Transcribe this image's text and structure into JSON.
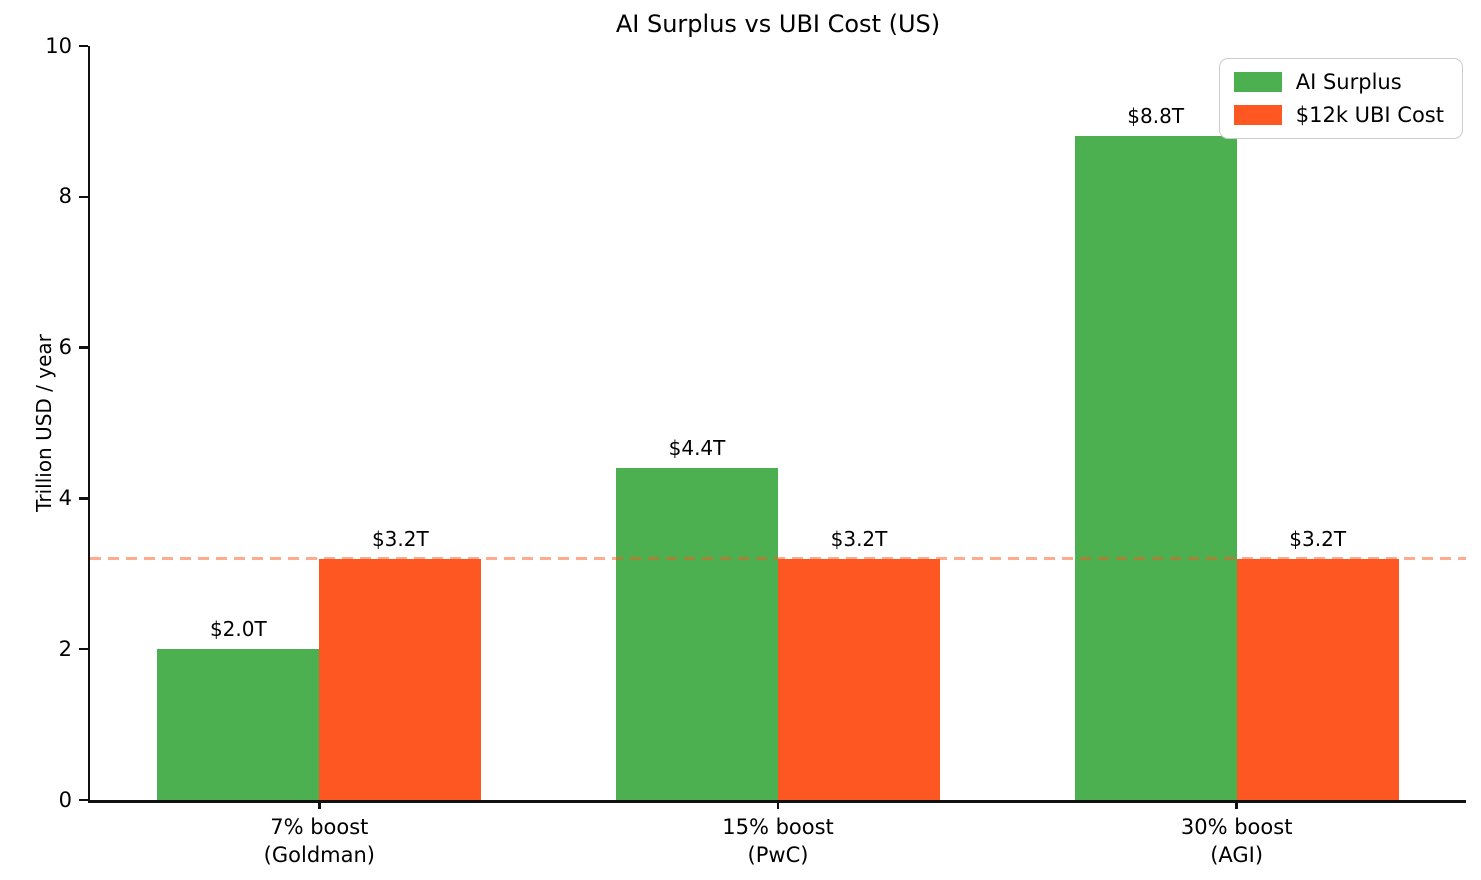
{
  "chart_data": {
    "type": "bar",
    "title": "AI Surplus vs UBI Cost (US)",
    "ylabel": "Trillion USD / year",
    "xlabel": "",
    "ylim": [
      0,
      10
    ],
    "yticks": [
      0,
      2,
      4,
      6,
      8,
      10
    ],
    "grid": false,
    "background": "#ffffff",
    "axis_color": "#111111",
    "text_color": "#000000",
    "categories": [
      {
        "line1": "7% boost",
        "line2": "(Goldman)"
      },
      {
        "line1": "15% boost",
        "line2": "(PwC)"
      },
      {
        "line1": "30% boost",
        "line2": "(AGI)"
      }
    ],
    "series": [
      {
        "name": "AI Surplus",
        "color": "#4caf50",
        "values": [
          2.0,
          4.4,
          8.8
        ],
        "bar_labels": [
          "$2.0T",
          "$4.4T",
          "$8.8T"
        ]
      },
      {
        "name": "$12k UBI Cost",
        "color": "#ff5722",
        "values": [
          3.2,
          3.2,
          3.2
        ],
        "bar_labels": [
          "$3.2T",
          "$3.2T",
          "$3.2T"
        ]
      }
    ],
    "reference_line": {
      "value": 3.2,
      "color": "#ff5722",
      "opacity": 0.5,
      "style": "dashed"
    },
    "legend": {
      "position": "upper right",
      "entries": [
        "AI Surplus",
        "$12k UBI Cost"
      ]
    }
  }
}
